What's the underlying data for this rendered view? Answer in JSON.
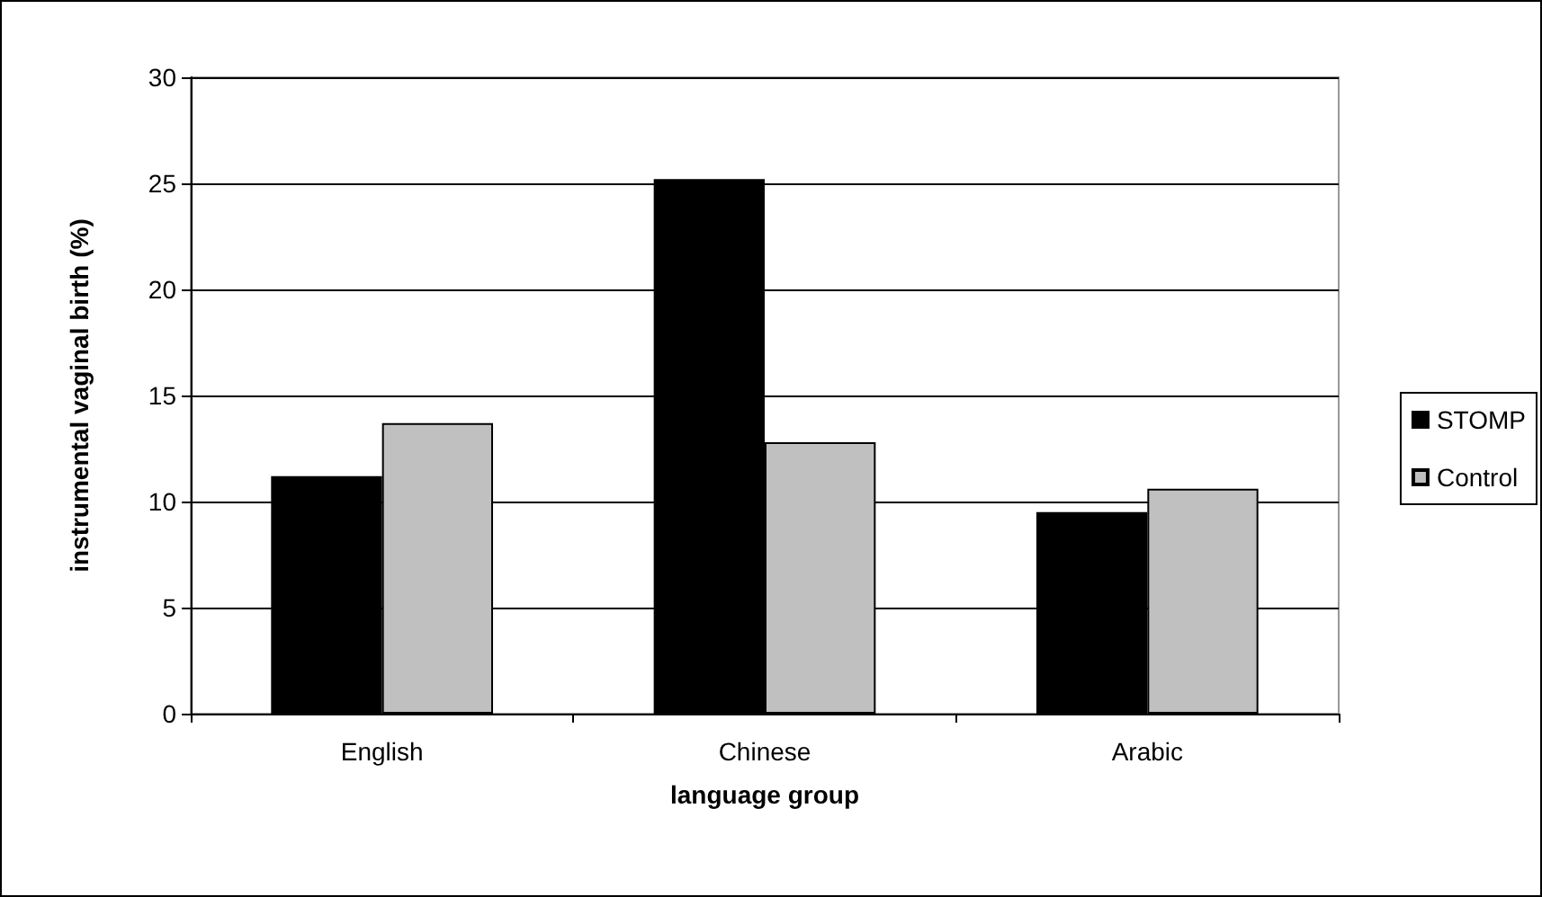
{
  "chart_data": {
    "type": "bar",
    "xlabel": "language group",
    "ylabel": "instrumental vaginal birth (%)",
    "categories": [
      "English",
      "Chinese",
      "Arabic"
    ],
    "series": [
      {
        "name": "STOMP",
        "color": "#000000",
        "values": [
          11.2,
          25.2,
          9.5
        ]
      },
      {
        "name": "Control",
        "color": "#c0c0c0",
        "values": [
          13.7,
          12.8,
          10.6
        ]
      }
    ],
    "ylim": [
      0,
      30
    ],
    "yticks": [
      0,
      5,
      10,
      15,
      20,
      25,
      30
    ],
    "grid": "y",
    "legend": "right"
  }
}
